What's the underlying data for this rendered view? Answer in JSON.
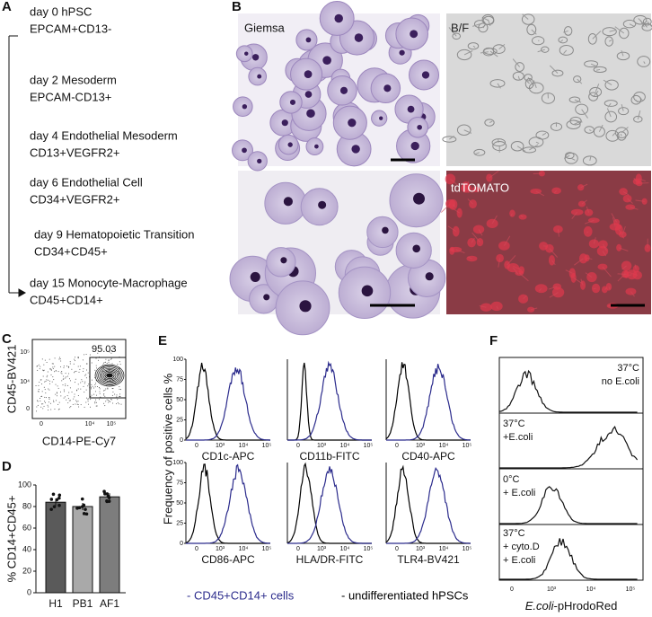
{
  "panel_labels": [
    "A",
    "B",
    "C",
    "D",
    "E",
    "F"
  ],
  "A": {
    "steps": [
      [
        "day 0 hPSC",
        "EPCAM+CD13-"
      ],
      [
        "day 2 Mesoderm",
        "EPCAM-CD13+"
      ],
      [
        "day 4 Endothelial Mesoderm",
        "CD13+VEGFR2+"
      ],
      [
        "day 6 Endothelial Cell",
        "CD34+VEGFR2+"
      ],
      [
        "day 9 Hematopoietic Transition",
        "CD34+CD45+"
      ],
      [
        "day 15 Monocyte-Macrophage",
        "CD45+CD14+"
      ]
    ]
  },
  "B": {
    "images": [
      "Giemsa",
      "B/F",
      "tdTOMATO"
    ]
  },
  "C": {
    "y_label": "CD45-BV421",
    "x_label": "CD14-PE-Cy7",
    "gate_percent": 95.03,
    "xticks": [
      "0",
      "10⁴",
      "10⁵"
    ],
    "yticks": [
      "10⁵",
      "10⁴",
      "0"
    ]
  },
  "D": {
    "y_label": "% CD14+CD45+",
    "categories": [
      "H1",
      "PB1",
      "AF1"
    ],
    "values": [
      84,
      80,
      89
    ],
    "colors": [
      "#5a5a5a",
      "#a9a9a9",
      "#7d7d7d"
    ],
    "ylim": [
      0,
      100
    ],
    "yticks": [
      0,
      20,
      40,
      60,
      80,
      100
    ]
  },
  "E": {
    "y_label": "Frequency of positive cells %",
    "markers": [
      "CD1c-APC",
      "CD11b-FITC",
      "CD40-APC",
      "CD86-APC",
      "HLA/DR-FITC",
      "TLR4-BV421"
    ],
    "ylim": [
      0,
      100
    ],
    "yticks": [
      0,
      25,
      50,
      75,
      100
    ],
    "xticks": [
      "0",
      "10³",
      "10⁴",
      "10⁵"
    ],
    "legend": [
      {
        "text": "- CD45+CD14+ cells",
        "color": "#2b2b8c"
      },
      {
        "text": "- undifferentiated hPSCs",
        "color": "#000000"
      }
    ]
  },
  "F": {
    "conditions": [
      [
        "37°C",
        "no E.coli"
      ],
      [
        "37°C",
        "+E.coli"
      ],
      [
        "0°C",
        "+ E.coli"
      ],
      [
        "37°C",
        "+ cyto.D",
        "+ E.coli"
      ]
    ],
    "xticks": [
      "0",
      "10³",
      "10⁴",
      "10⁵"
    ],
    "x_label_italic": "E.coli",
    "x_label_rest": "-pHrodoRed"
  }
}
